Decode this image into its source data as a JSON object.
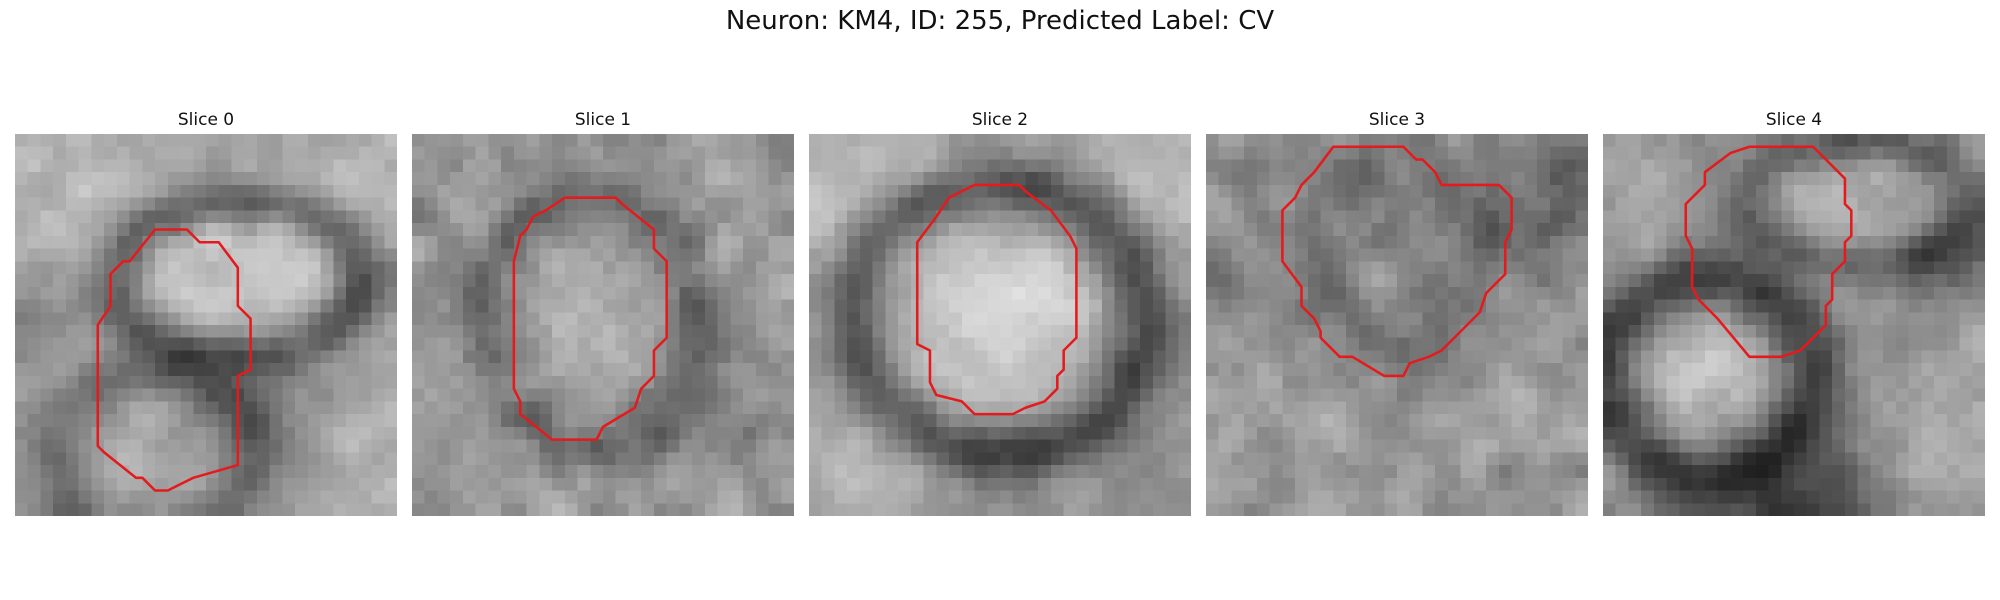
{
  "figure": {
    "title": "Neuron: KM4, ID: 255, Predicted Label: CV",
    "contour_color": "#e41a1c"
  },
  "panels": [
    {
      "title": "Slice 0"
    },
    {
      "title": "Slice 1"
    },
    {
      "title": "Slice 2"
    },
    {
      "title": "Slice 3"
    },
    {
      "title": "Slice 4"
    }
  ]
}
